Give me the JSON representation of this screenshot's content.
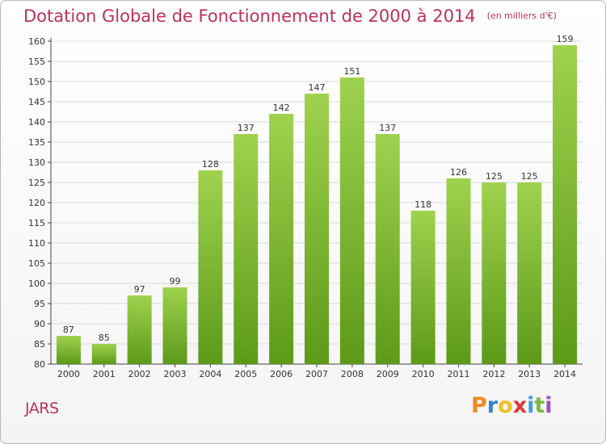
{
  "header": {
    "title": "Dotation Globale de Fonctionnement de 2000 à 2014",
    "unit": "(en milliers d'€)"
  },
  "footer": {
    "commune": "JARS",
    "logo_text": "Proxiti"
  },
  "colors": {
    "title": "#c0305a",
    "bar_light": "#9fd24e",
    "bar_dark": "#5c9a18",
    "grid": "#d9d9d9",
    "axis": "#444444"
  },
  "chart_data": {
    "type": "bar",
    "title": "Dotation Globale de Fonctionnement de 2000 à 2014",
    "subtitle": "(en milliers d'€)",
    "xlabel": "",
    "ylabel": "",
    "categories": [
      "2000",
      "2001",
      "2002",
      "2003",
      "2004",
      "2005",
      "2006",
      "2007",
      "2008",
      "2009",
      "2010",
      "2011",
      "2012",
      "2013",
      "2014"
    ],
    "values": [
      87,
      85,
      97,
      99,
      128,
      137,
      142,
      147,
      151,
      137,
      118,
      126,
      125,
      125,
      159
    ],
    "ylim": [
      80,
      160
    ],
    "yticks": [
      80,
      85,
      90,
      95,
      100,
      105,
      110,
      115,
      120,
      125,
      130,
      135,
      140,
      145,
      150,
      155,
      160
    ],
    "grid": true,
    "data_labels": true
  }
}
